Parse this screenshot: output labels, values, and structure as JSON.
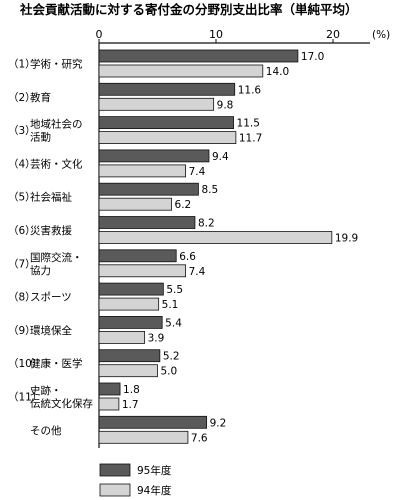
{
  "chart_data": {
    "type": "bar",
    "orientation": "horizontal",
    "title": "社会貢献活動に対する寄付金の分野別支出比率（単純平均）",
    "unit": "(%)",
    "xlim": [
      0,
      20
    ],
    "xticks": [
      "0",
      "10",
      "20"
    ],
    "categories": [
      {
        "num": "（1）",
        "lines": [
          "学術・研究"
        ]
      },
      {
        "num": "（2）",
        "lines": [
          "教育"
        ]
      },
      {
        "num": "（3）",
        "lines": [
          "地域社会の",
          "活動"
        ]
      },
      {
        "num": "（4）",
        "lines": [
          "芸術・文化"
        ]
      },
      {
        "num": "（5）",
        "lines": [
          "社会福祉"
        ]
      },
      {
        "num": "（6）",
        "lines": [
          "災害救援"
        ]
      },
      {
        "num": "（7）",
        "lines": [
          "国際交流・",
          "協力"
        ]
      },
      {
        "num": "（8）",
        "lines": [
          "スポーツ"
        ]
      },
      {
        "num": "（9）",
        "lines": [
          "環境保全"
        ]
      },
      {
        "num": "（10）",
        "lines": [
          "健康・医学"
        ]
      },
      {
        "num": "（11）",
        "lines": [
          "史跡・",
          "伝統文化保存"
        ]
      },
      {
        "num": "",
        "lines": [
          "その他"
        ]
      }
    ],
    "series": [
      {
        "name": "95年度",
        "color": "#5a5a5a",
        "values": [
          17.0,
          11.6,
          11.5,
          9.4,
          8.5,
          8.2,
          6.6,
          5.5,
          5.4,
          5.2,
          1.8,
          9.2
        ],
        "labels": [
          "17.0",
          "11.6",
          "11.5",
          "9.4",
          "8.5",
          "8.2",
          "6.6",
          "5.5",
          "5.4",
          "5.2",
          "1.8",
          "9.2"
        ]
      },
      {
        "name": "94年度",
        "color": "#d4d4d4",
        "values": [
          14.0,
          9.8,
          11.7,
          7.4,
          6.2,
          19.9,
          7.4,
          5.1,
          3.9,
          5.0,
          1.7,
          7.6
        ],
        "labels": [
          "14.0",
          "9.8",
          "11.7",
          "7.4",
          "6.2",
          "19.9",
          "7.4",
          "5.1",
          "3.9",
          "5.0",
          "1.7",
          "7.6"
        ]
      }
    ],
    "legend_position": "bottom-left"
  }
}
